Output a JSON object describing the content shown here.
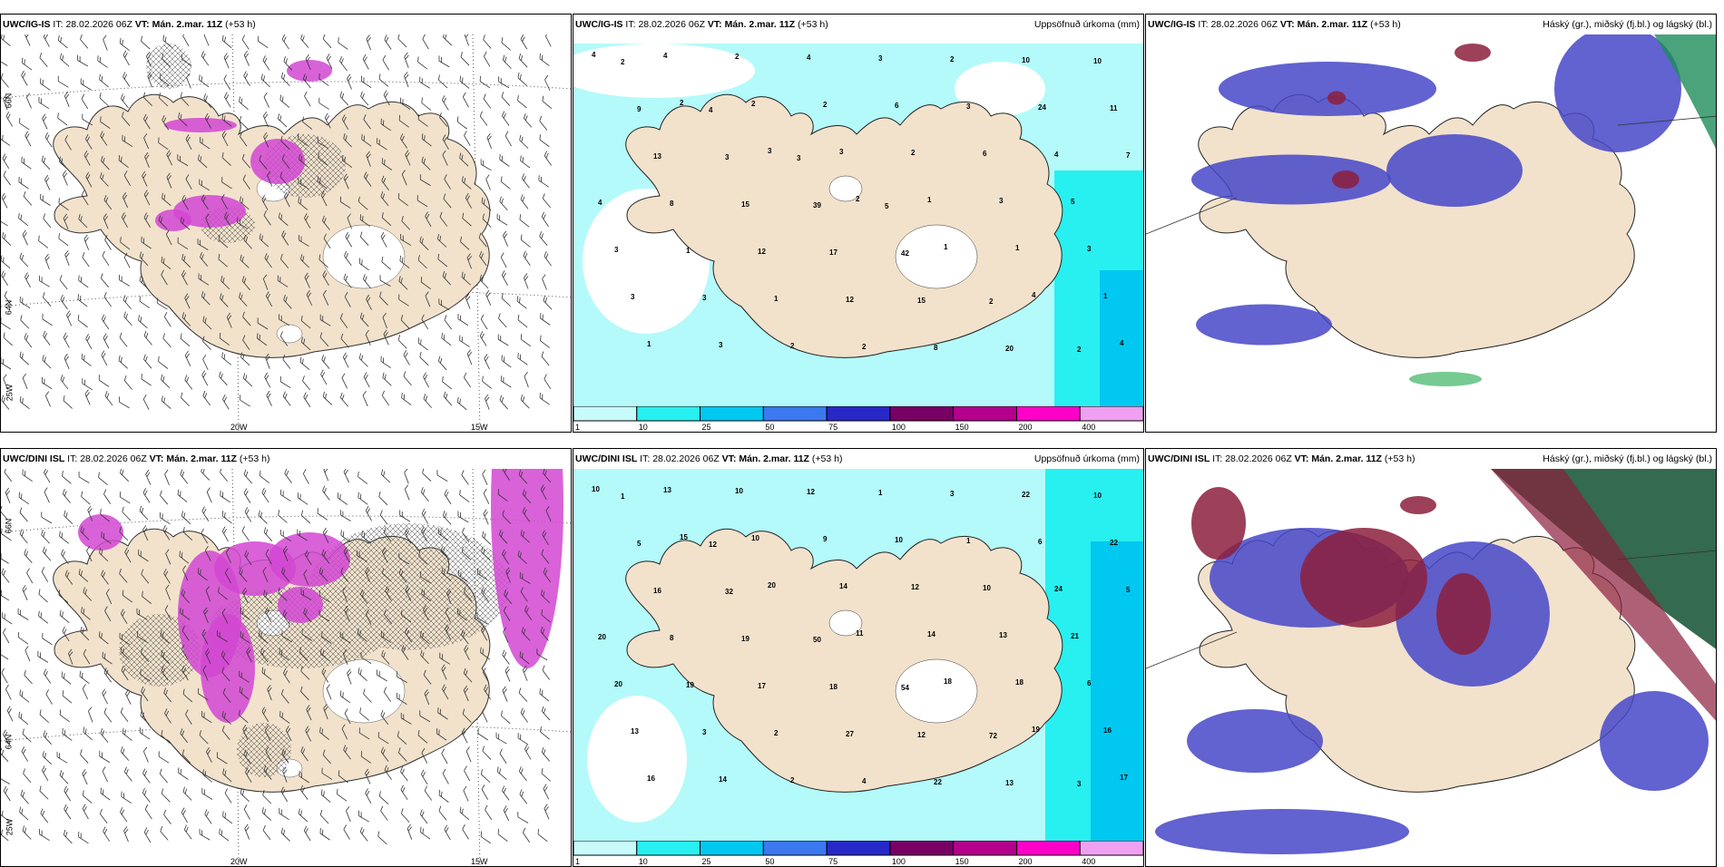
{
  "panels": [
    {
      "model": "UWC/IG-IS",
      "it_label": "IT:",
      "it": "28.02.2026 06Z",
      "vt_label": "VT:",
      "vt": "Mán. 2.mar. 11Z",
      "lead": "(+53 h)",
      "title": "",
      "kind": "wind"
    },
    {
      "model": "UWC/IG-IS",
      "it_label": "IT:",
      "it": "28.02.2026 06Z",
      "vt_label": "VT:",
      "vt": "Mán. 2.mar. 11Z",
      "lead": "(+53 h)",
      "title": "Uppsöfnuð úrkoma (mm)",
      "kind": "precip"
    },
    {
      "model": "UWC/IG-IS",
      "it_label": "IT:",
      "it": "28.02.2026 06Z",
      "vt_label": "VT:",
      "vt": "Mán. 2.mar. 11Z",
      "lead": "(+53 h)",
      "title": "Háský (gr.), miðský (fj.bl.) og lágský (bl.)",
      "kind": "cloud"
    },
    {
      "model": "UWC/DINI ISL",
      "it_label": "IT:",
      "it": "28.02.2026 06Z",
      "vt_label": "VT:",
      "vt": "Mán. 2.mar. 11Z",
      "lead": "(+53 h)",
      "title": "",
      "kind": "wind"
    },
    {
      "model": "UWC/DINI ISL",
      "it_label": "IT:",
      "it": "28.02.2026 06Z",
      "vt_label": "VT:",
      "vt": "Mán. 2.mar. 11Z",
      "lead": "(+53 h)",
      "title": "Uppsöfnuð úrkoma (mm)",
      "kind": "precip"
    },
    {
      "model": "UWC/DINI ISL",
      "it_label": "IT:",
      "it": "28.02.2026 06Z",
      "vt_label": "VT:",
      "vt": "Mán. 2.mar. 11Z",
      "lead": "(+53 h)",
      "title": "Háský (gr.), miðský (fj.bl.) og lágský (bl.)",
      "kind": "cloud"
    }
  ],
  "axes": {
    "lon_labels": [
      "20W",
      "15W"
    ],
    "lat_labels": [
      "66N",
      "64N",
      "25W"
    ]
  },
  "colorbar": {
    "ticks": [
      "1",
      "10",
      "25",
      "50",
      "75",
      "100",
      "150",
      "200",
      "400"
    ],
    "colors": [
      "#c8fcfc",
      "#28f0f0",
      "#00c8f0",
      "#3c78f0",
      "#2828c8",
      "#780064",
      "#b4008c",
      "#ff00c8",
      "#f0a0f0"
    ]
  },
  "colors": {
    "land": "#f2e2cc",
    "precip_light": "#b4fafa",
    "precip_mid": "#28f0f0",
    "precip_heavy": "#00c8f0",
    "cloud_high": "#8c1e3c",
    "cloud_mid": "#4646c8",
    "cloud_low": "#3cb464",
    "snow": "#d246d2"
  },
  "precip_values": {
    "top": [
      "4",
      "2",
      "3",
      "2",
      "1",
      "4",
      "4",
      "4",
      "2",
      "3",
      "1",
      "1",
      "1",
      "1",
      "2",
      "2",
      "2",
      "3",
      "3",
      "3",
      "3",
      "4",
      "6",
      "6",
      "5",
      "3",
      "3",
      "2",
      "3",
      "3",
      "4",
      "4",
      "1",
      "1",
      "2",
      "2",
      "24",
      "7",
      "8",
      "12",
      "12",
      "8",
      "10",
      "11",
      "13",
      "15",
      "17",
      "15",
      "20",
      "10",
      "9",
      "3",
      "39",
      "42",
      "2",
      "2",
      "2",
      "4",
      "3",
      "5"
    ],
    "bottom": [
      "10",
      "15",
      "20",
      "11",
      "18",
      "19",
      "17",
      "13",
      "10",
      "14",
      "14",
      "18",
      "16",
      "16",
      "10",
      "9",
      "12",
      "13",
      "6",
      "13",
      "14",
      "12",
      "10",
      "10",
      "21",
      "20",
      "3",
      "2",
      "1",
      "1",
      "24",
      "20",
      "19",
      "2",
      "4",
      "3",
      "6",
      "5",
      "8",
      "17",
      "27",
      "22",
      "22",
      "22",
      "16",
      "19",
      "18",
      "12",
      "13",
      "10",
      "5",
      "32",
      "50",
      "54",
      "72",
      "3",
      "1",
      "12"
    ]
  }
}
